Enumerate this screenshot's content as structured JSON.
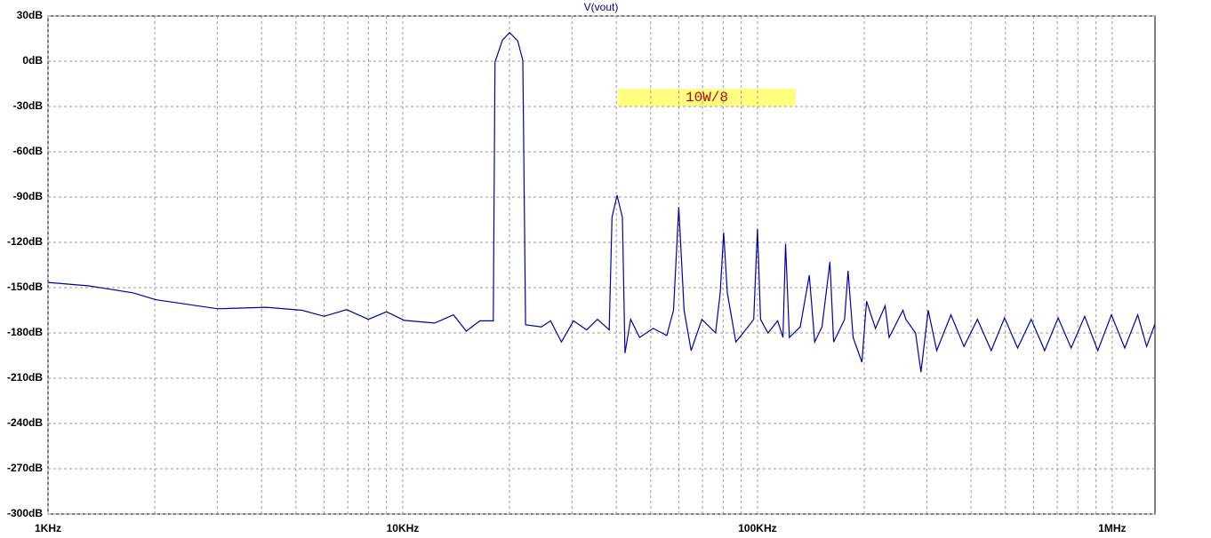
{
  "chart_data": {
    "type": "line",
    "title": "V(vout)",
    "annotation": "10W/8",
    "xscale": "log",
    "grid": true,
    "xlim": [
      1000,
      1320000
    ],
    "xticks": [
      {
        "value": 1000,
        "label": "1KHz"
      },
      {
        "value": 10000,
        "label": "10KHz"
      },
      {
        "value": 100000,
        "label": "100KHz"
      },
      {
        "value": 1000000,
        "label": "1MHz"
      }
    ],
    "xminorticks": [
      2000,
      3000,
      4000,
      5000,
      6000,
      7000,
      8000,
      9000,
      20000,
      30000,
      40000,
      50000,
      60000,
      70000,
      80000,
      90000,
      200000,
      300000,
      400000,
      500000,
      600000,
      700000,
      800000,
      900000
    ],
    "ylim": [
      -300,
      30
    ],
    "yticks": [
      {
        "value": 30,
        "label": "30dB"
      },
      {
        "value": 0,
        "label": "0dB"
      },
      {
        "value": -30,
        "label": "-30dB"
      },
      {
        "value": -60,
        "label": "-60dB"
      },
      {
        "value": -90,
        "label": "-90dB"
      },
      {
        "value": -120,
        "label": "-120dB"
      },
      {
        "value": -150,
        "label": "-150dB"
      },
      {
        "value": -180,
        "label": "-180dB"
      },
      {
        "value": -210,
        "label": "-210dB"
      },
      {
        "value": -240,
        "label": "-240dB"
      },
      {
        "value": -270,
        "label": "-270dB"
      },
      {
        "value": -300,
        "label": "-300dB"
      }
    ],
    "series": [
      {
        "name": "V(vout)",
        "color": "#0000a8",
        "x": [
          1000,
          1304,
          1740,
          2010,
          3010,
          4130,
          5200,
          6000,
          6950,
          8000,
          9000,
          10100,
          12300,
          13900,
          15100,
          16500,
          18000,
          18200,
          19100,
          20000,
          21100,
          21800,
          22200,
          24600,
          26100,
          28000,
          30300,
          33000,
          35400,
          38200,
          38900,
          40200,
          41600,
          42300,
          43900,
          46500,
          50800,
          55500,
          58000,
          60000,
          62100,
          65000,
          69700,
          76200,
          78500,
          80300,
          82200,
          86900,
          93300,
          97600,
          100000,
          102000,
          107000,
          114000,
          118000,
          120000,
          123000,
          132000,
          140000,
          145000,
          152000,
          160000,
          164000,
          176000,
          180000,
          186000,
          197000,
          203000,
          215000,
          229000,
          235000,
          257000,
          262000,
          279000,
          289000,
          303000,
          320000,
          351000,
          382000,
          417000,
          456000,
          497000,
          541000,
          591000,
          645000,
          704000,
          766000,
          836000,
          911000,
          995000,
          1085000,
          1180000,
          1250000,
          1320000
        ],
        "values": [
          -146.5,
          -148.8,
          -153.5,
          -158,
          -164,
          -163,
          -165,
          -169,
          -164.6,
          -171,
          -166,
          -171.7,
          -173.5,
          -168,
          -178.8,
          -172,
          -172,
          -0.6,
          14,
          19,
          13.5,
          0.6,
          -174.6,
          -176,
          -172,
          -186,
          -172,
          -178,
          -171,
          -178,
          -103.5,
          -88.8,
          -103.5,
          -193.4,
          -171,
          -183,
          -177,
          -181.7,
          -165,
          -96.5,
          -165,
          -191.7,
          -171,
          -180,
          -153.5,
          -113.5,
          -153.5,
          -186,
          -177,
          -171,
          -111,
          -171,
          -180,
          -172,
          -183,
          -121,
          -183,
          -176,
          -141.8,
          -186,
          -176,
          -133,
          -186,
          -171,
          -138.8,
          -183,
          -199.4,
          -159,
          -177,
          -162,
          -183,
          -165,
          -171,
          -180,
          -206,
          -165,
          -191.7,
          -168,
          -189,
          -171,
          -191.7,
          -170,
          -190,
          -171,
          -191.7,
          -170,
          -190,
          -169,
          -191.7,
          -168,
          -190,
          -168,
          -189,
          -174
        ]
      }
    ]
  }
}
